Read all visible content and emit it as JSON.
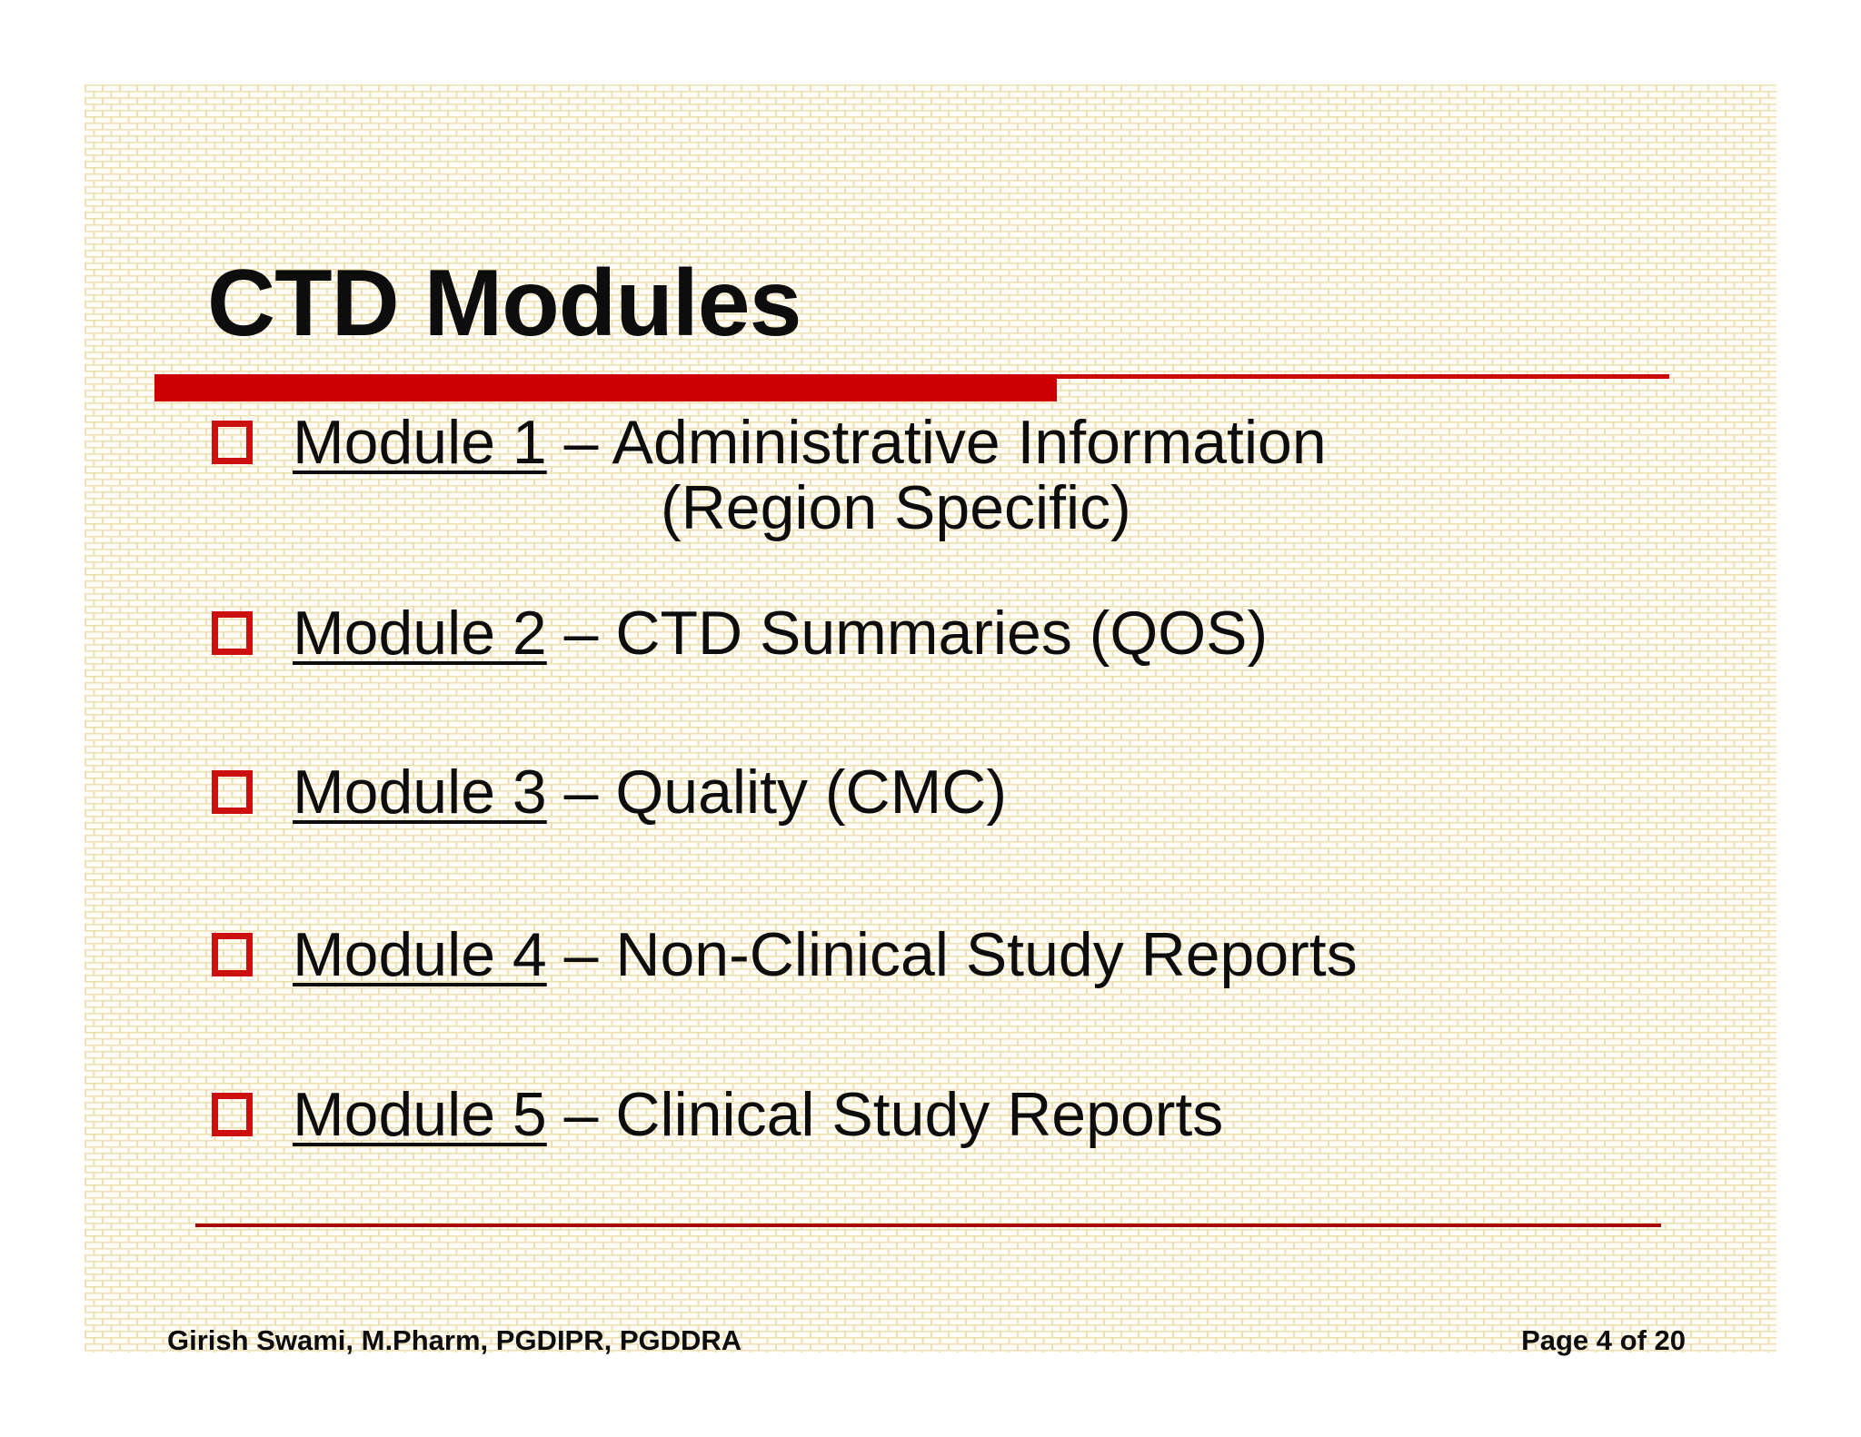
{
  "slide": {
    "title": "CTD Modules"
  },
  "bullets": {
    "items": [
      {
        "module": "Module 1",
        "separator": " – ",
        "description": "Administrative Information",
        "description_line2": "(Region Specific)"
      },
      {
        "module": "Module 2",
        "separator": " – ",
        "description": "CTD Summaries (QOS)"
      },
      {
        "module": "Module 3",
        "separator": " – ",
        "description": "Quality (CMC)"
      },
      {
        "module": "Module 4",
        "separator": " – ",
        "description": "Non-Clinical Study Reports"
      },
      {
        "module": "Module 5",
        "separator": " – ",
        "description": "Clinical Study Reports"
      }
    ]
  },
  "footer": {
    "author": "Girish Swami, M.Pharm, PGDIPR, PGDDRA",
    "page": "Page 4 of 20"
  },
  "colors": {
    "accent_red": "#cc0000",
    "divider_red": "#a40808",
    "text": "#0d0d0d",
    "brick_mortar": "#eedfb2",
    "brick_fill": "#fffdf5"
  },
  "icons": {
    "bullet": "square-outline-icon"
  }
}
